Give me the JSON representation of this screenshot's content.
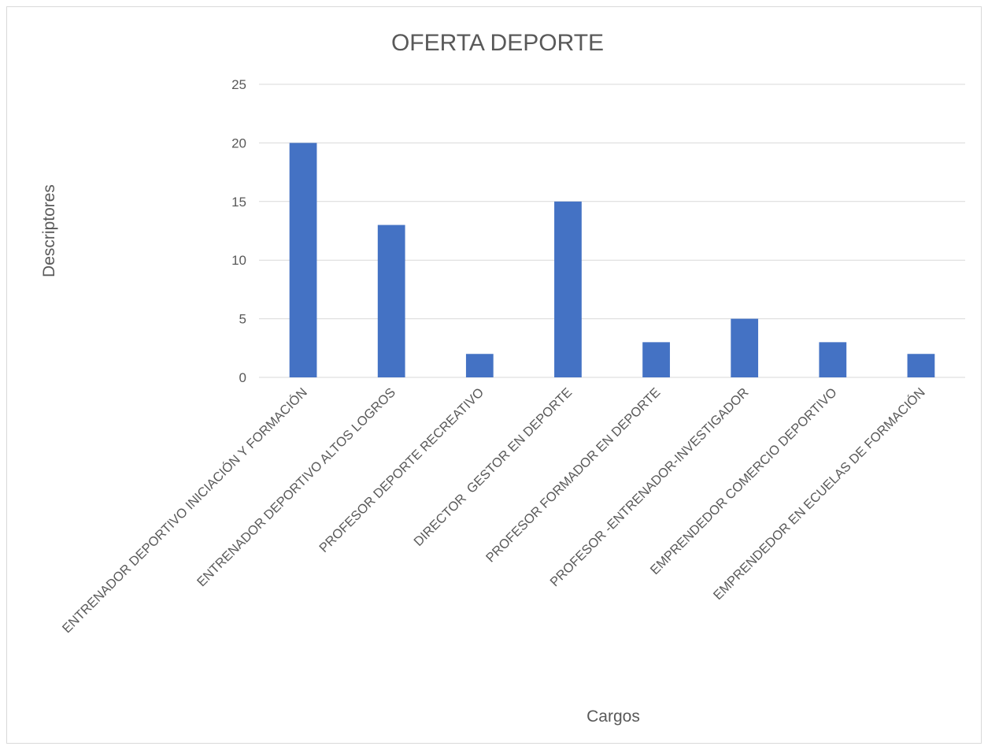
{
  "chart_data": {
    "type": "bar",
    "title": "OFERTA DEPORTE",
    "xlabel": "Cargos",
    "ylabel": "Descriptores",
    "categories": [
      "ENTRENADOR DEPORTIVO INICIACIÓN Y FORMACIÓN",
      "ENTRENADOR DEPORTIVO ALTOS LOGROS",
      "PROFESOR DEPORTE RECREATIVO",
      "DIRECTOR  GESTOR EN DEPORTE",
      "PROFESOR FORMADOR EN DEPORTE",
      "PROFESOR -ENTRENADOR-INVESTIGADOR",
      "EMPRENDEDOR COMERCIO DEPORTIVO",
      "EMPRENDEDOR EN ECUELAS DE FORMACIÓN"
    ],
    "values": [
      20,
      13,
      2,
      15,
      3,
      5,
      3,
      2
    ],
    "ylim": [
      0,
      25
    ],
    "yticks": [
      0,
      5,
      10,
      15,
      20,
      25
    ],
    "grid": true,
    "legend": "none",
    "bar_color": "#4472c4"
  }
}
